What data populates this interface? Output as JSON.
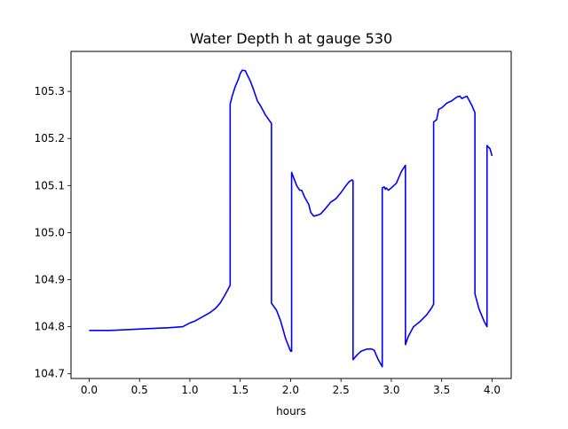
{
  "chart_data": {
    "type": "line",
    "title": "Water Depth h at gauge 530",
    "xlabel": "hours",
    "ylabel": "",
    "xlim": [
      -0.18,
      4.19
    ],
    "ylim": [
      104.69,
      105.385
    ],
    "xticks": [
      0.0,
      0.5,
      1.0,
      1.5,
      2.0,
      2.5,
      3.0,
      3.5,
      4.0
    ],
    "xtick_labels": [
      "0.0",
      "0.5",
      "1.0",
      "1.5",
      "2.0",
      "2.5",
      "3.0",
      "3.5",
      "4.0"
    ],
    "yticks": [
      104.7,
      104.8,
      104.9,
      105.0,
      105.1,
      105.2,
      105.3
    ],
    "ytick_labels": [
      "104.7",
      "104.8",
      "104.9",
      "105.0",
      "105.1",
      "105.2",
      "105.3"
    ],
    "grid": false,
    "legend": "none",
    "series": [
      {
        "color": "#0000ff",
        "x": [
          0.0,
          0.2,
          0.4,
          0.6,
          0.7,
          0.8,
          0.93,
          1.0,
          1.05,
          1.1,
          1.2,
          1.25,
          1.3,
          1.35,
          1.38,
          1.4,
          1.4,
          1.42,
          1.45,
          1.48,
          1.5,
          1.52,
          1.55,
          1.57,
          1.6,
          1.63,
          1.67,
          1.7,
          1.75,
          1.8,
          1.81,
          1.81,
          1.86,
          1.9,
          1.95,
          2.0,
          2.01,
          2.01,
          2.06,
          2.09,
          2.11,
          2.14,
          2.18,
          2.2,
          2.23,
          2.25,
          2.28,
          2.3,
          2.35,
          2.4,
          2.45,
          2.5,
          2.55,
          2.58,
          2.61,
          2.62,
          2.62,
          2.66,
          2.7,
          2.75,
          2.8,
          2.83,
          2.87,
          2.91,
          2.91,
          2.93,
          2.94,
          2.95,
          2.97,
          3.0,
          3.05,
          3.1,
          3.14,
          3.14,
          3.17,
          3.22,
          3.28,
          3.35,
          3.4,
          3.42,
          3.42,
          3.45,
          3.47,
          3.5,
          3.55,
          3.6,
          3.65,
          3.68,
          3.7,
          3.75,
          3.8,
          3.83,
          3.83,
          3.87,
          3.92,
          3.95,
          3.95,
          3.98,
          4.0
        ],
        "y": [
          104.792,
          104.792,
          104.794,
          104.796,
          104.797,
          104.798,
          104.8,
          104.808,
          104.812,
          104.818,
          104.83,
          104.838,
          104.85,
          104.868,
          104.88,
          104.888,
          105.273,
          105.29,
          105.31,
          105.325,
          105.338,
          105.345,
          105.344,
          105.335,
          105.322,
          105.305,
          105.28,
          105.27,
          105.25,
          105.235,
          105.232,
          104.85,
          104.835,
          104.813,
          104.775,
          104.748,
          104.748,
          105.128,
          105.1,
          105.09,
          105.09,
          105.075,
          105.06,
          105.043,
          105.035,
          105.036,
          105.038,
          105.04,
          105.052,
          105.065,
          105.072,
          105.085,
          105.1,
          105.108,
          105.112,
          105.11,
          104.73,
          104.74,
          104.748,
          104.752,
          104.753,
          104.75,
          104.73,
          104.715,
          105.095,
          105.097,
          105.092,
          105.095,
          105.09,
          105.095,
          105.105,
          105.13,
          105.143,
          104.762,
          104.78,
          104.8,
          104.81,
          104.825,
          104.84,
          104.848,
          105.235,
          105.24,
          105.262,
          105.265,
          105.275,
          105.28,
          105.288,
          105.29,
          105.285,
          105.29,
          105.27,
          105.255,
          104.87,
          104.838,
          104.812,
          104.8,
          105.185,
          105.178,
          105.163
        ]
      }
    ]
  }
}
